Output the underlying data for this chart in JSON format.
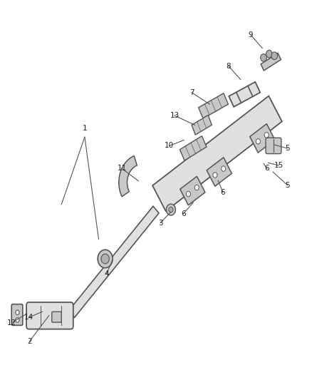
{
  "bg_color": "#ffffff",
  "line_color": "#555555",
  "label_color": "#222222",
  "figsize": [
    4.38,
    5.33
  ],
  "dpi": 100,
  "label_fontsize": 7.5
}
